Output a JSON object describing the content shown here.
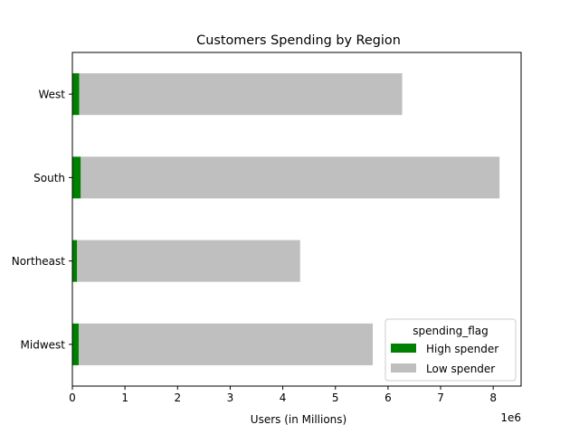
{
  "chart_data": {
    "type": "bar",
    "orientation": "horizontal",
    "stacked": true,
    "title": "Customers Spending by Region",
    "xlabel": "Users (in Millions)",
    "ylabel": "",
    "x_offset_label": "1e6",
    "xlim": [
      0,
      8.53
    ],
    "xticks": [
      "0",
      "1",
      "2",
      "3",
      "4",
      "5",
      "6",
      "7",
      "8"
    ],
    "categories": [
      "Midwest",
      "Northeast",
      "South",
      "West"
    ],
    "series": [
      {
        "name": "High spender",
        "color": "#008000",
        "values": [
          0.12,
          0.09,
          0.16,
          0.13
        ]
      },
      {
        "name": "Low spender",
        "color": "#bfbfbf",
        "values": [
          5.59,
          4.24,
          7.96,
          6.14
        ]
      }
    ],
    "grid": false,
    "legend": {
      "title": "spending_flag",
      "placement": "bottom-right"
    }
  }
}
